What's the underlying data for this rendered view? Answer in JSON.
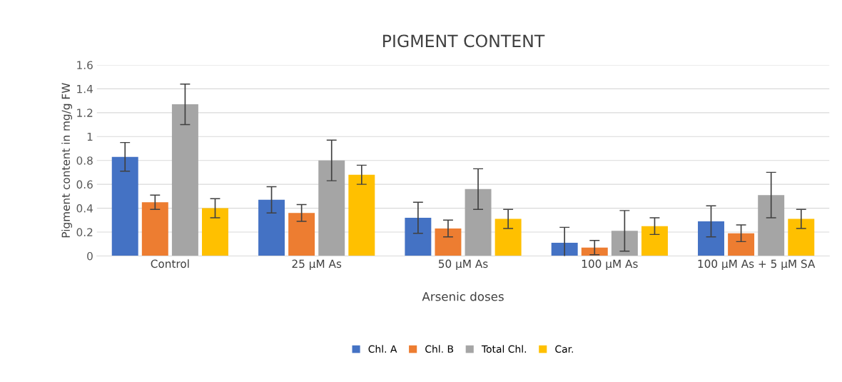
{
  "chart_data": {
    "type": "bar",
    "title": "PIGMENT CONTENT",
    "xlabel": "Arsenic doses",
    "ylabel": "Pigment content in mg/g FW",
    "categories": [
      "Control",
      "25 µM As",
      "50 µM As",
      "100 µM As",
      "100 µM As + 5 µM SA"
    ],
    "series": [
      {
        "name": "Chl. A",
        "color": "#4472c4",
        "values": [
          0.83,
          0.47,
          0.32,
          0.11,
          0.29
        ],
        "errors": [
          0.12,
          0.11,
          0.13,
          0.13,
          0.13
        ]
      },
      {
        "name": "Chl. B",
        "color": "#ed7d31",
        "values": [
          0.45,
          0.36,
          0.23,
          0.07,
          0.19
        ],
        "errors": [
          0.06,
          0.07,
          0.07,
          0.06,
          0.07
        ]
      },
      {
        "name": "Total Chl.",
        "color": "#a5a5a5",
        "values": [
          1.27,
          0.8,
          0.56,
          0.21,
          0.51
        ],
        "errors": [
          0.17,
          0.17,
          0.17,
          0.17,
          0.19
        ]
      },
      {
        "name": "Car.",
        "color": "#ffc000",
        "values": [
          0.4,
          0.68,
          0.31,
          0.25,
          0.31
        ],
        "errors": [
          0.08,
          0.08,
          0.08,
          0.07,
          0.08
        ]
      }
    ],
    "ylim": [
      0,
      1.6
    ],
    "yticks": [
      0,
      0.2,
      0.4,
      0.6,
      0.8,
      1,
      1.2,
      1.4,
      1.6
    ],
    "grid": "y",
    "legend": "bottom"
  }
}
